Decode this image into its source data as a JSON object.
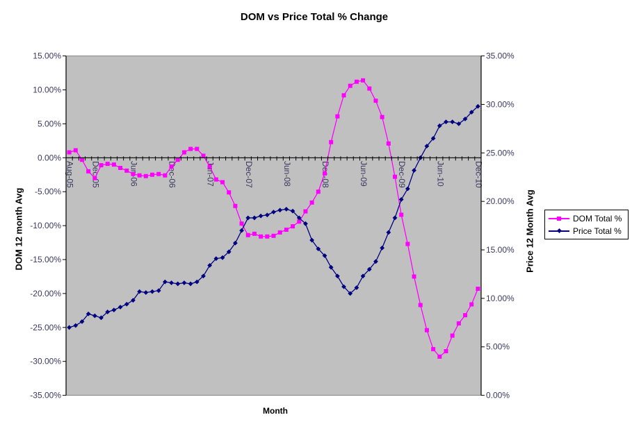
{
  "chart_title": "DOM vs Price Total % Change",
  "axes": {
    "x_title": "Month",
    "left_title": "DOM 12 month Avg",
    "right_title": "Price 12 Month Avg",
    "left_tick_labels": [
      "15.00%",
      "10.00%",
      "5.00%",
      "0.00%",
      "-5.00%",
      "-10.00%",
      "-15.00%",
      "-20.00%",
      "-25.00%",
      "-30.00%",
      "-35.00%"
    ],
    "right_tick_labels": [
      "35.00%",
      "30.00%",
      "25.00%",
      "20.00%",
      "15.00%",
      "10.00%",
      "5.00%",
      "0.00%"
    ]
  },
  "legend": {
    "items": [
      {
        "label": "DOM Total %",
        "color": "#FF00FF",
        "marker": "square"
      },
      {
        "label": "Price Total %",
        "color": "#000080",
        "marker": "diamond"
      }
    ]
  },
  "colors": {
    "plot_bg": "#C0C0C0",
    "plot_border": "#808080",
    "axis_line": "#000000",
    "tick_label": "#39395f",
    "dom_series": "#FF00FF",
    "price_series": "#000080"
  },
  "chart_data": {
    "type": "line",
    "title": "DOM vs Price Total % Change",
    "xlabel": "Month",
    "legend_position": "right",
    "grid": false,
    "months": [
      "Aug-05",
      "Sep-05",
      "Oct-05",
      "Nov-05",
      "Dec-05",
      "Jan-06",
      "Feb-06",
      "Mar-06",
      "Apr-06",
      "May-06",
      "Jun-06",
      "Jul-06",
      "Aug-06",
      "Sep-06",
      "Oct-06",
      "Nov-06",
      "Dec-06",
      "Jan-07",
      "Feb-07",
      "Mar-07",
      "Apr-07",
      "May-07",
      "Jun-07",
      "Jul-07",
      "Aug-07",
      "Sep-07",
      "Oct-07",
      "Nov-07",
      "Dec-07",
      "Jan-08",
      "Feb-08",
      "Mar-08",
      "Apr-08",
      "May-08",
      "Jun-08",
      "Jul-08",
      "Aug-08",
      "Sep-08",
      "Oct-08",
      "Nov-08",
      "Dec-08",
      "Jan-09",
      "Feb-09",
      "Mar-09",
      "Apr-09",
      "May-09",
      "Jun-09",
      "Jul-09",
      "Aug-09",
      "Sep-09",
      "Oct-09",
      "Nov-09",
      "Dec-09",
      "Jan-10",
      "Feb-10",
      "Mar-10",
      "Apr-10",
      "May-10",
      "Jun-10",
      "Jul-10",
      "Aug-10",
      "Sep-10",
      "Oct-10",
      "Nov-10",
      "Dec-10"
    ],
    "x_tick_positions": [
      0,
      4,
      10,
      16,
      22,
      28,
      34,
      40,
      46,
      52,
      58,
      64
    ],
    "x_tick_labels": [
      "Aug-05",
      "Dec-05",
      "Jun-06",
      "Dec-06",
      "Jun-07",
      "Dec-07",
      "Jun-08",
      "Dec-08",
      "Jun-09",
      "Dec-09",
      "Jun-10",
      "Dec-10"
    ],
    "left_axis": {
      "title": "DOM 12 month Avg",
      "min": -35,
      "max": 15,
      "step": 5
    },
    "right_axis": {
      "title": "Price 12 Month Avg",
      "min": 0,
      "max": 35,
      "step": 5
    },
    "series": [
      {
        "name": "DOM Total %",
        "axis": "left",
        "color": "#FF00FF",
        "marker": "square",
        "values": [
          0.8,
          1.1,
          -0.3,
          -2.0,
          -3.0,
          -1.1,
          -0.9,
          -1.0,
          -1.5,
          -1.9,
          -2.4,
          -2.6,
          -2.7,
          -2.5,
          -2.4,
          -2.6,
          -1.3,
          -0.3,
          0.8,
          1.3,
          1.3,
          0.3,
          -1.3,
          -3.2,
          -3.6,
          -5.1,
          -7.1,
          -9.7,
          -11.4,
          -11.2,
          -11.6,
          -11.6,
          -11.5,
          -11.0,
          -10.6,
          -10.1,
          -9.4,
          -7.9,
          -6.6,
          -5.0,
          -2.3,
          2.3,
          6.1,
          9.2,
          10.6,
          11.2,
          11.4,
          10.2,
          8.4,
          6.0,
          2.1,
          -2.8,
          -8.4,
          -12.7,
          -17.5,
          -21.7,
          -25.4,
          -28.2,
          -29.3,
          -28.5,
          -26.2,
          -24.4,
          -23.2,
          -21.6,
          -19.3
        ]
      },
      {
        "name": "Price Total %",
        "axis": "right",
        "color": "#000080",
        "marker": "diamond",
        "values": [
          7.0,
          7.2,
          7.6,
          8.4,
          8.2,
          8.0,
          8.6,
          8.8,
          9.1,
          9.4,
          9.8,
          10.7,
          10.6,
          10.7,
          10.8,
          11.7,
          11.6,
          11.5,
          11.6,
          11.5,
          11.7,
          12.3,
          13.4,
          14.1,
          14.2,
          14.8,
          15.7,
          17.0,
          18.3,
          18.3,
          18.5,
          18.6,
          18.9,
          19.1,
          19.2,
          19.0,
          18.3,
          17.7,
          16.0,
          15.1,
          14.4,
          13.2,
          12.3,
          11.2,
          10.5,
          11.1,
          12.3,
          13.0,
          13.8,
          15.2,
          16.8,
          18.3,
          20.2,
          21.3,
          23.2,
          24.5,
          25.7,
          26.5,
          27.8,
          28.2,
          28.2,
          28.0,
          28.5,
          29.2,
          29.8
        ]
      }
    ]
  }
}
